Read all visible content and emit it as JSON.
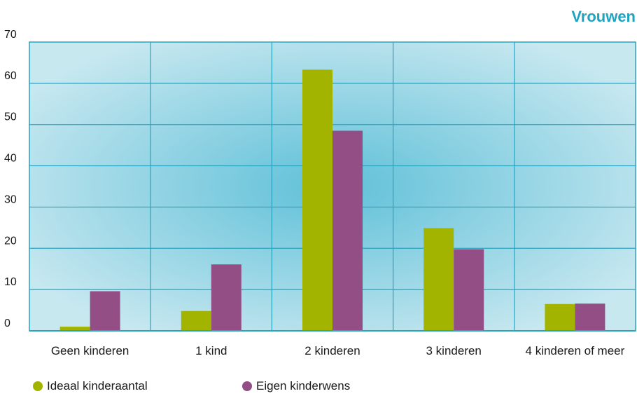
{
  "chart_data": {
    "type": "bar",
    "title": "Vrouwen",
    "categories": [
      "Geen kinderen",
      "1 kind",
      "2 kinderen",
      "3 kinderen",
      "4 kinderen of meer"
    ],
    "series": [
      {
        "name": "Ideaal kinderaantal",
        "color": "#a3b400",
        "values": [
          1,
          4.8,
          63.3,
          24.9,
          6.5
        ]
      },
      {
        "name": "Eigen kinderwens",
        "color": "#944e86",
        "values": [
          9.6,
          16.1,
          48.5,
          19.8,
          6.6
        ]
      }
    ],
    "ylim": [
      0,
      70
    ],
    "yticks": [
      0,
      10,
      20,
      30,
      40,
      50,
      60,
      70
    ],
    "grid": true,
    "legend_position": "bottom-left",
    "colors": {
      "title": "#1fa3c0",
      "plot_center": "#5fc0d8",
      "plot_edge": "#c8e8f0",
      "grid": "#2aa3bf"
    }
  }
}
